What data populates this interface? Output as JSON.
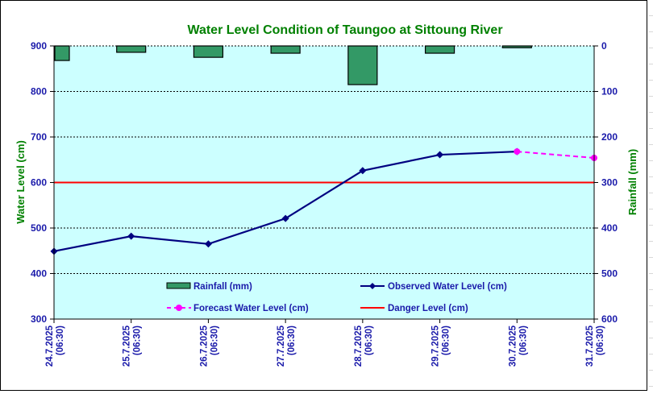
{
  "chart_data": {
    "type": "line",
    "title": "Water Level Condition of Taungoo at  Sittoung River",
    "xlabel": "",
    "ylabel": "Water Level (cm)",
    "y2label": "Rainfall (mm)",
    "categories": [
      [
        "24.7.2025",
        "(06:30)"
      ],
      [
        "25.7.2025",
        "(06:30)"
      ],
      [
        "26.7.2025",
        "(06:30)"
      ],
      [
        "27.7.2025",
        "(06:30)"
      ],
      [
        "28.7.2025",
        "(06:30)"
      ],
      [
        "29.7.2025",
        "(06:30)"
      ],
      [
        "30.7.2025",
        "(06:30)"
      ],
      [
        "31.7.2025",
        "(06:30)"
      ]
    ],
    "ylim": [
      300,
      900
    ],
    "yticks": [
      900,
      800,
      700,
      600,
      500,
      400,
      300
    ],
    "y2lim": [
      0,
      600
    ],
    "y2ticks": [
      0,
      100,
      200,
      300,
      400,
      500,
      600
    ],
    "y2_inverted": true,
    "grid": true,
    "series": [
      {
        "name": "Rainfall (mm)",
        "type": "bar",
        "axis": "right",
        "color": "#339966",
        "values": [
          32,
          14,
          25,
          16,
          85,
          16,
          4,
          null
        ]
      },
      {
        "name": "Observed Water Level (cm)",
        "type": "line",
        "axis": "left",
        "color": "#000080",
        "marker": "diamond",
        "values": [
          449,
          482,
          465,
          521,
          626,
          661,
          668,
          null
        ]
      },
      {
        "name": "Forecast Water Level (cm)",
        "type": "line",
        "axis": "left",
        "color": "#ff00ff",
        "marker": "circle",
        "dashed": true,
        "values": [
          null,
          null,
          null,
          null,
          null,
          null,
          668,
          654
        ]
      },
      {
        "name": "Danger Level (cm)",
        "type": "line",
        "axis": "left",
        "color": "#ff0000",
        "values": [
          600,
          600,
          600,
          600,
          600,
          600,
          600,
          600
        ]
      }
    ],
    "legend": {
      "position": "bottom-inside",
      "entries": [
        "Rainfall (mm)",
        "Observed Water Level (cm)",
        "Forecast Water Level (cm)",
        "Danger Level (cm)"
      ]
    },
    "colors": {
      "plot_bg": "#ccffff",
      "tick_text": "#1a1aaa",
      "title_text": "#008000"
    }
  }
}
